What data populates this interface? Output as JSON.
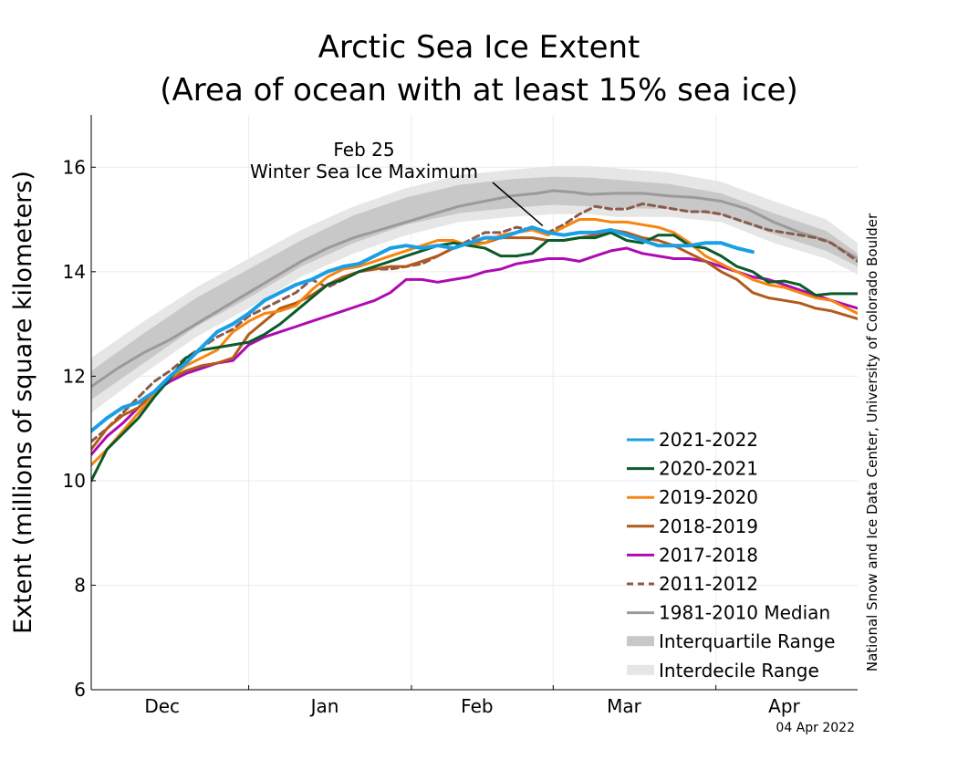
{
  "chart_data": {
    "type": "line",
    "title_line1": "Arctic Sea Ice Extent",
    "title_line2": "(Area of ocean with at least 15% sea ice)",
    "ylabel": "Extent (millions of square kilometers)",
    "ylim": [
      6,
      17
    ],
    "y_ticks": [
      6,
      8,
      10,
      12,
      14,
      16
    ],
    "xlim": [
      0,
      146
    ],
    "x_month_ticks": [
      {
        "label": "Dec",
        "x": 13.5
      },
      {
        "label": "Jan",
        "x": 44.5
      },
      {
        "label": "Feb",
        "x": 73.5
      },
      {
        "label": "Mar",
        "x": 101.5
      },
      {
        "label": "Apr",
        "x": 132
      }
    ],
    "x_separators": [
      30,
      61,
      88,
      119
    ],
    "annotation": {
      "line1": "Feb 25",
      "line2": "Winter Sea Ice Maximum",
      "x": 86,
      "y": 14.88
    },
    "source": "National Snow and Ice Data Center, University of Colorado Boulder",
    "date_stamp": "04 Apr 2022",
    "interdecile_range": {
      "x": [
        0,
        10,
        20,
        30,
        40,
        50,
        60,
        70,
        80,
        88,
        95,
        100,
        110,
        120,
        130,
        140,
        146
      ],
      "low": [
        11.3,
        12.05,
        12.75,
        13.3,
        13.9,
        14.35,
        14.7,
        14.95,
        15.05,
        15.1,
        15.1,
        15.05,
        15.05,
        14.95,
        14.55,
        14.25,
        13.95
      ],
      "high": [
        12.35,
        13.05,
        13.7,
        14.25,
        14.8,
        15.25,
        15.6,
        15.85,
        15.95,
        16.02,
        16.02,
        15.98,
        15.9,
        15.72,
        15.35,
        15.0,
        14.55
      ]
    },
    "interquartile_range": {
      "x": [
        0,
        10,
        20,
        30,
        40,
        50,
        60,
        70,
        80,
        88,
        95,
        100,
        110,
        120,
        130,
        140,
        146
      ],
      "low": [
        11.55,
        12.25,
        12.95,
        13.5,
        14.1,
        14.55,
        14.9,
        15.12,
        15.22,
        15.28,
        15.25,
        15.22,
        15.2,
        15.08,
        14.72,
        14.4,
        14.1
      ],
      "high": [
        12.1,
        12.82,
        13.5,
        14.05,
        14.6,
        15.08,
        15.42,
        15.66,
        15.77,
        15.82,
        15.8,
        15.76,
        15.68,
        15.5,
        15.12,
        14.78,
        14.35
      ]
    },
    "median": {
      "name": "1981-2010 Median",
      "color": "#9a9a9a",
      "x": [
        0,
        5,
        10,
        15,
        20,
        25,
        30,
        35,
        40,
        45,
        50,
        55,
        60,
        65,
        70,
        75,
        80,
        85,
        88,
        92,
        95,
        100,
        105,
        110,
        115,
        120,
        125,
        130,
        135,
        140,
        146
      ],
      "y": [
        11.8,
        12.15,
        12.45,
        12.7,
        13.0,
        13.3,
        13.6,
        13.9,
        14.2,
        14.45,
        14.65,
        14.8,
        14.95,
        15.1,
        15.25,
        15.35,
        15.45,
        15.5,
        15.55,
        15.52,
        15.48,
        15.5,
        15.5,
        15.45,
        15.42,
        15.35,
        15.2,
        14.95,
        14.75,
        14.6,
        14.25
      ]
    },
    "series": [
      {
        "name": "2021-2022",
        "color": "#1a9fe6",
        "dashed": false,
        "width": 4,
        "x": [
          0,
          3,
          6,
          9,
          12,
          15,
          18,
          21,
          24,
          27,
          30,
          33,
          36,
          39,
          42,
          45,
          48,
          51,
          54,
          57,
          60,
          63,
          66,
          69,
          72,
          75,
          78,
          81,
          84,
          87,
          90,
          93,
          96,
          99,
          102,
          105,
          108,
          111,
          114,
          117,
          120,
          123,
          126
        ],
        "y": [
          10.95,
          11.2,
          11.4,
          11.5,
          11.7,
          12.0,
          12.25,
          12.55,
          12.85,
          13.0,
          13.2,
          13.45,
          13.6,
          13.75,
          13.85,
          14.0,
          14.1,
          14.15,
          14.3,
          14.45,
          14.5,
          14.45,
          14.5,
          14.45,
          14.55,
          14.65,
          14.65,
          14.75,
          14.85,
          14.75,
          14.7,
          14.75,
          14.75,
          14.8,
          14.7,
          14.6,
          14.5,
          14.5,
          14.5,
          14.55,
          14.55,
          14.45,
          14.38
        ]
      },
      {
        "name": "2020-2021",
        "color": "#0a5a2a",
        "dashed": false,
        "width": 3,
        "x": [
          0,
          3,
          6,
          9,
          12,
          15,
          18,
          21,
          24,
          27,
          30,
          33,
          36,
          39,
          42,
          45,
          48,
          51,
          54,
          57,
          60,
          63,
          66,
          69,
          72,
          75,
          78,
          81,
          84,
          87,
          90,
          93,
          96,
          99,
          102,
          105,
          108,
          111,
          114,
          117,
          120,
          123,
          126,
          129,
          132,
          135,
          138,
          141,
          146
        ],
        "y": [
          10.0,
          10.6,
          10.9,
          11.2,
          11.6,
          11.95,
          12.35,
          12.5,
          12.55,
          12.6,
          12.65,
          12.8,
          13.0,
          13.25,
          13.5,
          13.75,
          13.85,
          14.0,
          14.1,
          14.2,
          14.3,
          14.4,
          14.5,
          14.55,
          14.5,
          14.45,
          14.3,
          14.3,
          14.35,
          14.6,
          14.6,
          14.65,
          14.65,
          14.75,
          14.6,
          14.55,
          14.7,
          14.7,
          14.5,
          14.45,
          14.3,
          14.1,
          14.0,
          13.8,
          13.82,
          13.75,
          13.55,
          13.58,
          13.58
        ]
      },
      {
        "name": "2019-2020",
        "color": "#f7860f",
        "dashed": false,
        "width": 3,
        "x": [
          0,
          3,
          6,
          9,
          12,
          15,
          18,
          21,
          24,
          27,
          30,
          33,
          36,
          39,
          42,
          45,
          48,
          51,
          54,
          57,
          60,
          63,
          66,
          69,
          72,
          75,
          78,
          81,
          84,
          87,
          90,
          93,
          96,
          99,
          102,
          105,
          108,
          111,
          114,
          117,
          120,
          123,
          126,
          129,
          132,
          135,
          138,
          141,
          146
        ],
        "y": [
          10.3,
          10.6,
          10.95,
          11.3,
          11.65,
          11.95,
          12.2,
          12.35,
          12.5,
          12.85,
          13.05,
          13.2,
          13.25,
          13.35,
          13.65,
          13.9,
          14.05,
          14.1,
          14.2,
          14.3,
          14.4,
          14.5,
          14.6,
          14.6,
          14.5,
          14.55,
          14.7,
          14.75,
          14.8,
          14.7,
          14.85,
          15.0,
          15.0,
          14.95,
          14.95,
          14.9,
          14.85,
          14.75,
          14.55,
          14.3,
          14.15,
          14.0,
          13.85,
          13.75,
          13.7,
          13.6,
          13.5,
          13.45,
          13.2
        ]
      },
      {
        "name": "2018-2019",
        "color": "#b15a1a",
        "dashed": false,
        "width": 3,
        "x": [
          0,
          3,
          6,
          9,
          12,
          15,
          18,
          21,
          24,
          27,
          30,
          33,
          36,
          39,
          42,
          45,
          48,
          51,
          54,
          57,
          60,
          63,
          66,
          69,
          72,
          75,
          78,
          81,
          84,
          87,
          90,
          93,
          96,
          99,
          102,
          105,
          108,
          111,
          114,
          117,
          120,
          123,
          126,
          129,
          132,
          135,
          138,
          141,
          146
        ],
        "y": [
          10.6,
          11.0,
          11.25,
          11.4,
          11.7,
          11.95,
          12.1,
          12.2,
          12.25,
          12.35,
          12.8,
          13.05,
          13.3,
          13.4,
          13.55,
          13.75,
          13.9,
          14.0,
          14.05,
          14.1,
          14.1,
          14.2,
          14.3,
          14.45,
          14.55,
          14.55,
          14.65,
          14.65,
          14.65,
          14.6,
          14.6,
          14.65,
          14.7,
          14.8,
          14.75,
          14.65,
          14.6,
          14.5,
          14.35,
          14.2,
          14.0,
          13.85,
          13.6,
          13.5,
          13.45,
          13.4,
          13.3,
          13.25,
          13.1
        ]
      },
      {
        "name": "2017-2018",
        "color": "#ad0bb3",
        "dashed": false,
        "width": 3,
        "x": [
          0,
          3,
          6,
          9,
          12,
          15,
          18,
          21,
          24,
          27,
          30,
          33,
          36,
          39,
          42,
          45,
          48,
          51,
          54,
          57,
          60,
          63,
          66,
          69,
          72,
          75,
          78,
          81,
          84,
          87,
          90,
          93,
          96,
          99,
          102,
          105,
          108,
          111,
          114,
          117,
          120,
          123,
          126,
          129,
          132,
          135,
          138,
          141,
          146
        ],
        "y": [
          10.5,
          10.85,
          11.1,
          11.4,
          11.7,
          11.9,
          12.05,
          12.15,
          12.25,
          12.3,
          12.6,
          12.75,
          12.85,
          12.95,
          13.05,
          13.15,
          13.25,
          13.35,
          13.45,
          13.6,
          13.85,
          13.85,
          13.8,
          13.85,
          13.9,
          14.0,
          14.05,
          14.15,
          14.2,
          14.25,
          14.25,
          14.2,
          14.3,
          14.4,
          14.45,
          14.35,
          14.3,
          14.25,
          14.25,
          14.2,
          14.1,
          14.0,
          13.9,
          13.85,
          13.75,
          13.65,
          13.55,
          13.45,
          13.3
        ]
      },
      {
        "name": "2011-2012",
        "color": "#8b5a4a",
        "dashed": true,
        "width": 3,
        "x": [
          0,
          3,
          6,
          9,
          12,
          15,
          18,
          21,
          24,
          27,
          30,
          33,
          36,
          39,
          42,
          45,
          48,
          51,
          54,
          57,
          60,
          63,
          66,
          69,
          72,
          75,
          78,
          81,
          84,
          87,
          90,
          93,
          96,
          99,
          102,
          105,
          108,
          111,
          114,
          117,
          120,
          123,
          126,
          129,
          132,
          135,
          138,
          141,
          146
        ],
        "y": [
          10.75,
          11.0,
          11.3,
          11.6,
          11.9,
          12.1,
          12.35,
          12.55,
          12.75,
          12.9,
          13.15,
          13.3,
          13.45,
          13.6,
          13.85,
          13.7,
          13.85,
          14.0,
          14.05,
          14.05,
          14.1,
          14.15,
          14.3,
          14.45,
          14.6,
          14.75,
          14.75,
          14.85,
          14.8,
          14.75,
          14.9,
          15.1,
          15.25,
          15.2,
          15.2,
          15.3,
          15.25,
          15.2,
          15.15,
          15.15,
          15.1,
          15.0,
          14.9,
          14.8,
          14.75,
          14.7,
          14.65,
          14.55,
          14.2
        ]
      }
    ],
    "legend": [
      {
        "label": "2021-2022",
        "kind": "line",
        "color": "#1a9fe6"
      },
      {
        "label": "2020-2021",
        "kind": "line",
        "color": "#0a5a2a"
      },
      {
        "label": "2019-2020",
        "kind": "line",
        "color": "#f7860f"
      },
      {
        "label": "2018-2019",
        "kind": "line",
        "color": "#b15a1a"
      },
      {
        "label": "2017-2018",
        "kind": "line",
        "color": "#ad0bb3"
      },
      {
        "label": "2011-2012",
        "kind": "dashed",
        "color": "#8b5a4a"
      },
      {
        "label": "1981-2010 Median",
        "kind": "line",
        "color": "#9a9a9a"
      },
      {
        "label": "Interquartile Range",
        "kind": "band",
        "color": "#c8c8c8"
      },
      {
        "label": "Interdecile Range",
        "kind": "band",
        "color": "#e6e6e6"
      }
    ]
  }
}
